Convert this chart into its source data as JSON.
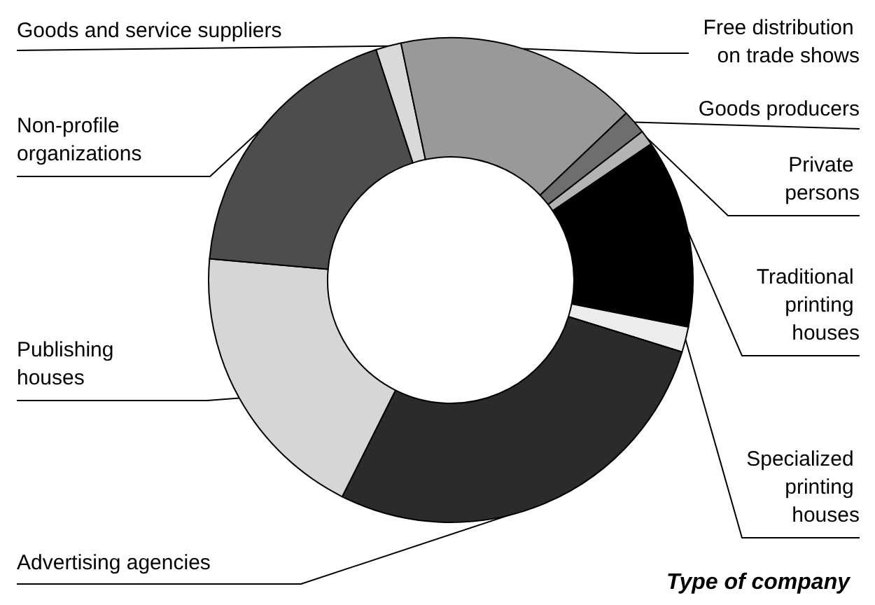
{
  "chart_data": {
    "type": "donut",
    "categories": [
      "Goods and service suppliers",
      "Free distribution on trade shows",
      "Goods producers",
      "Private persons",
      "Traditional printing houses",
      "Specialized printing houses",
      "Advertising agencies",
      "Publishing houses",
      "Non-profile organizations"
    ],
    "values": [
      1.7,
      16.2,
      1.6,
      1.0,
      12.6,
      1.7,
      27.6,
      19.0,
      18.6
    ],
    "colors": [
      "#d9d9d9",
      "#999999",
      "#6e6e6e",
      "#b3b3b3",
      "#000000",
      "#ececec",
      "#2b2b2b",
      "#d6d6d6",
      "#4d4d4d"
    ],
    "annotations": [
      "Type of company"
    ],
    "legend": false
  }
}
